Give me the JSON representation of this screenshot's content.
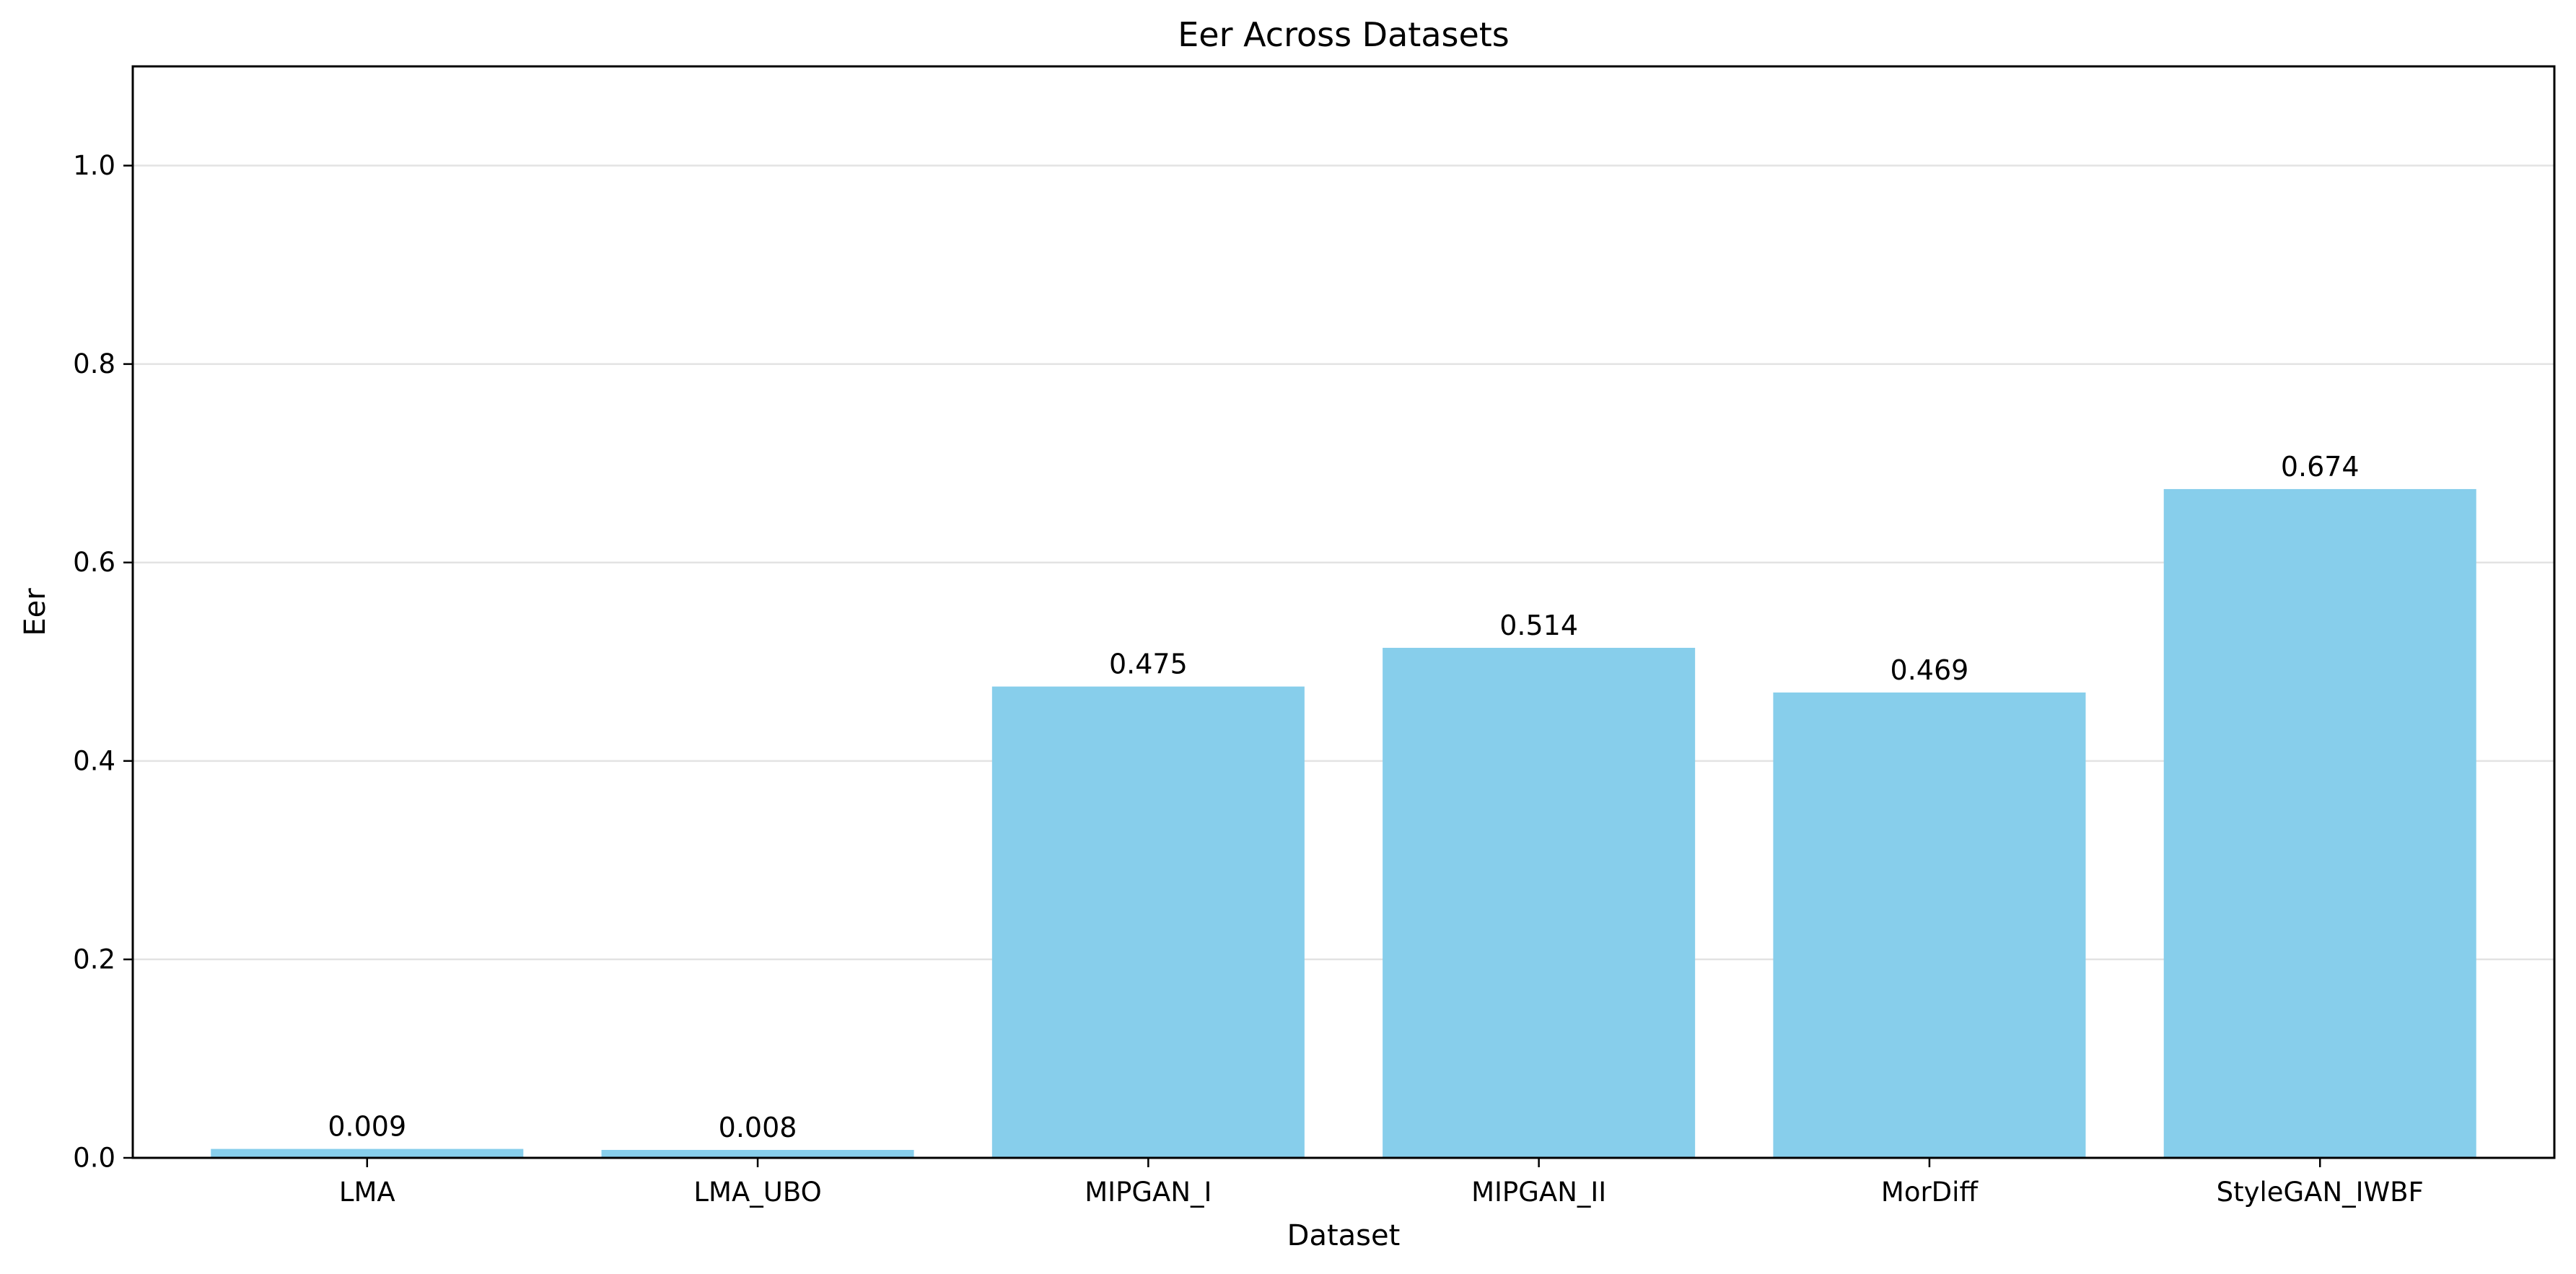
{
  "chart_data": {
    "type": "bar",
    "title": "Eer Across Datasets",
    "xlabel": "Dataset",
    "ylabel": "Eer",
    "categories": [
      "LMA",
      "LMA_UBO",
      "MIPGAN_I",
      "MIPGAN_II",
      "MorDiff",
      "StyleGAN_IWBF"
    ],
    "values": [
      0.009,
      0.008,
      0.475,
      0.514,
      0.469,
      0.674
    ],
    "value_labels": [
      "0.009",
      "0.008",
      "0.475",
      "0.514",
      "0.469",
      "0.674"
    ],
    "ylim": [
      0,
      1.1
    ],
    "yticks": [
      0.0,
      0.2,
      0.4,
      0.6,
      0.8,
      1.0
    ],
    "ytick_labels": [
      "0.0",
      "0.2",
      "0.4",
      "0.6",
      "0.8",
      "1.0"
    ],
    "grid": "y",
    "bar_color": "#87CEEB"
  }
}
